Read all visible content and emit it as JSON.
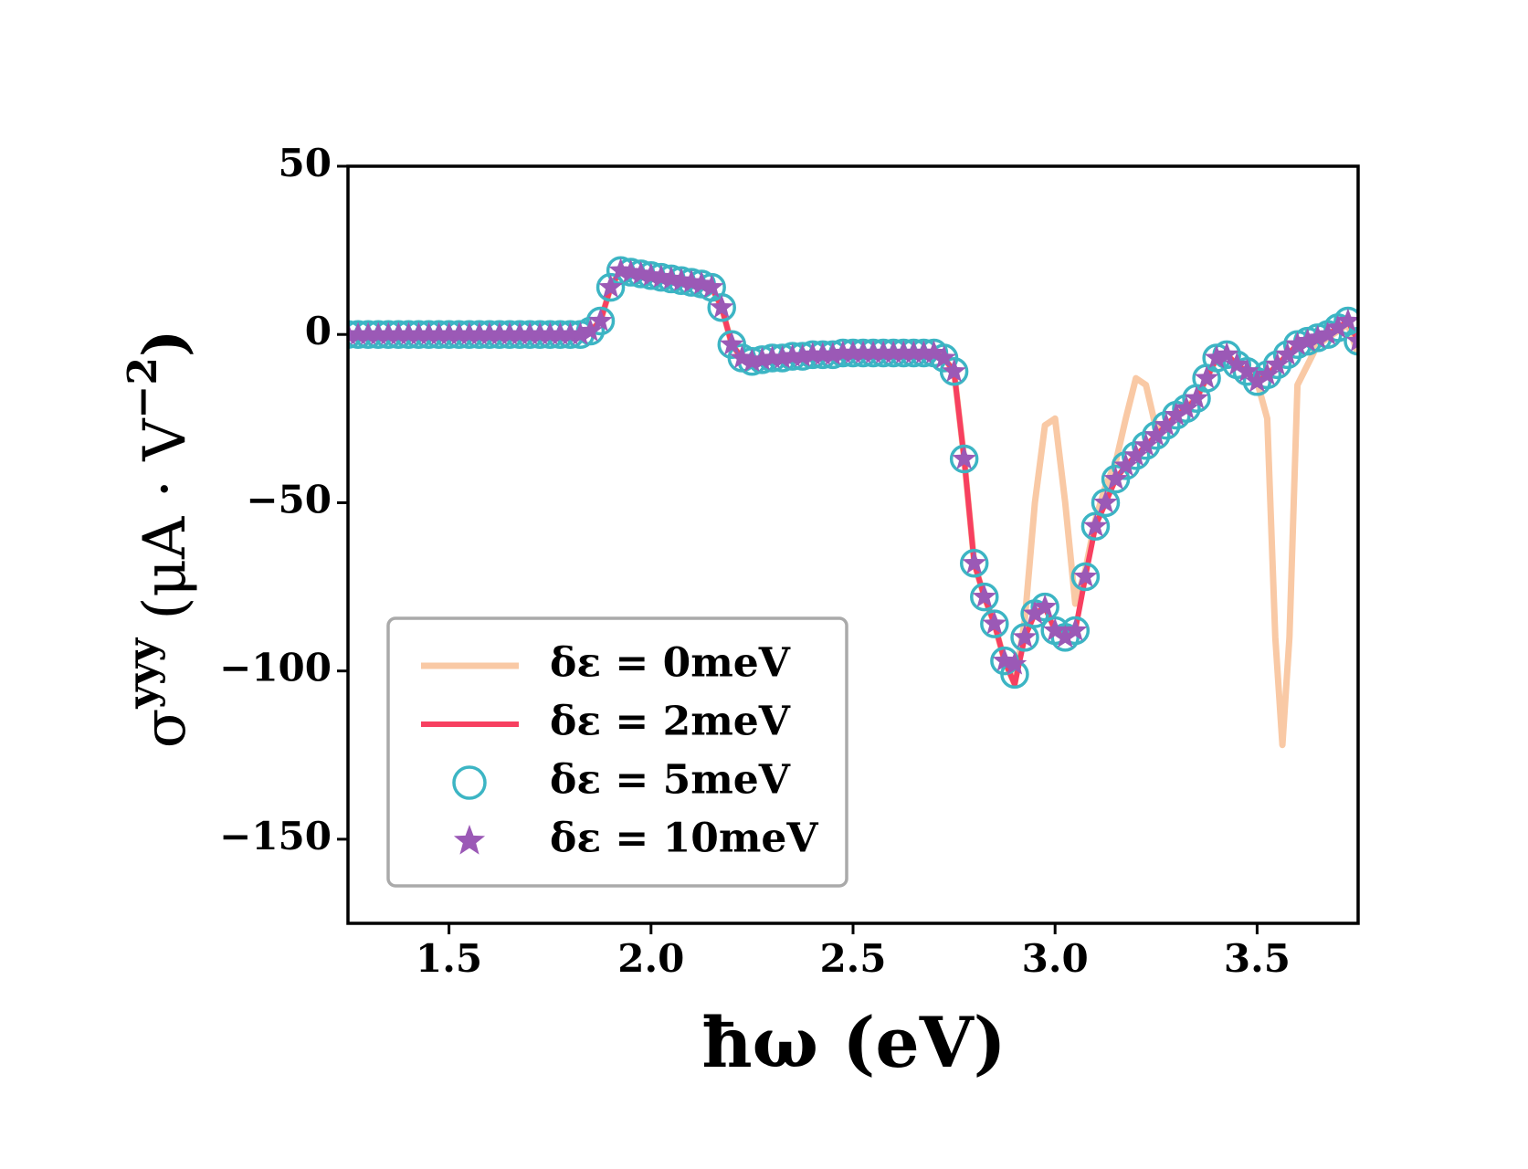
{
  "chart_data": {
    "type": "line",
    "xlabel": "ħω (eV)",
    "ylabel_parts": [
      "σ",
      "yyy",
      " (μA · V",
      "−2",
      ")"
    ],
    "xlim": [
      1.25,
      3.75
    ],
    "ylim": [
      -175,
      50
    ],
    "xticks": [
      1.5,
      {
        "value": 2,
        "label": "2.0"
      },
      2.5,
      {
        "value": 3,
        "label": "3.0"
      },
      3.5
    ],
    "yticks": [
      50,
      0,
      {
        "value": -50,
        "label": "−50"
      },
      {
        "value": -100,
        "label": "−100"
      },
      {
        "value": -150,
        "label": "−150"
      }
    ],
    "legend": "lower left",
    "x": [
      1.25,
      1.275,
      1.3,
      1.325,
      1.35,
      1.375,
      1.4,
      1.425,
      1.45,
      1.475,
      1.5,
      1.525,
      1.55,
      1.575,
      1.6,
      1.625,
      1.65,
      1.675,
      1.7,
      1.725,
      1.75,
      1.775,
      1.8,
      1.825,
      1.85,
      1.875,
      1.9,
      1.925,
      1.95,
      1.975,
      2.0,
      2.025,
      2.05,
      2.075,
      2.1,
      2.125,
      2.15,
      2.175,
      2.2,
      2.225,
      2.25,
      2.275,
      2.3,
      2.325,
      2.35,
      2.375,
      2.4,
      2.425,
      2.45,
      2.475,
      2.5,
      2.525,
      2.55,
      2.575,
      2.6,
      2.625,
      2.65,
      2.675,
      2.7,
      2.725,
      2.75,
      2.775,
      2.8,
      2.825,
      2.85,
      2.875,
      2.9,
      2.925,
      2.95,
      2.975,
      3.0,
      3.025,
      3.05,
      3.075,
      3.1,
      3.125,
      3.15,
      3.175,
      3.2,
      3.225,
      3.25,
      3.275,
      3.3,
      3.325,
      3.35,
      3.375,
      3.4,
      3.425,
      3.45,
      3.475,
      3.5,
      3.525,
      3.55,
      3.575,
      3.6,
      3.625,
      3.65,
      3.675,
      3.7,
      3.725,
      3.75
    ],
    "series": [
      {
        "name": "δε = 0meV",
        "color": "#f9c9a5",
        "style": "line",
        "x": [
          1.25,
          1.825,
          1.85,
          1.875,
          1.9,
          1.925,
          2.15,
          2.175,
          2.2,
          2.225,
          2.25,
          2.7,
          2.725,
          2.75,
          2.775,
          2.8,
          2.825,
          2.85,
          2.875,
          2.9,
          2.925,
          2.95,
          2.975,
          3.0,
          3.025,
          3.05,
          3.075,
          3.1,
          3.125,
          3.15,
          3.175,
          3.2,
          3.225,
          3.25,
          3.275,
          3.3,
          3.35,
          3.4,
          3.425,
          3.45,
          3.5,
          3.525,
          3.545,
          3.5625,
          3.58,
          3.6,
          3.65,
          3.7,
          3.725,
          3.75
        ],
        "values": [
          0,
          0,
          1,
          4,
          14,
          19,
          14,
          8,
          -3,
          -7,
          -8,
          -5.5,
          -7,
          -11,
          -37,
          -68,
          -78,
          -86,
          -97,
          -104,
          -85,
          -50,
          -27,
          -25,
          -50,
          -80,
          -70,
          -55,
          -45,
          -38,
          -25,
          -13,
          -15,
          -28,
          -28,
          -24,
          -19,
          -7,
          -6,
          -9,
          -14,
          -25,
          -90,
          -122,
          -90,
          -15,
          -3,
          1,
          3,
          -6
        ]
      },
      {
        "name": "δε = 2meV",
        "color": "#f74060",
        "style": "line",
        "values": [
          0,
          0,
          0,
          0,
          0,
          0,
          0,
          0,
          0,
          0,
          0,
          0,
          0,
          0,
          0,
          0,
          0,
          0,
          0,
          0,
          0,
          0,
          0,
          0,
          1,
          4,
          14,
          19,
          18.5,
          18,
          17.5,
          17,
          16.5,
          16,
          15.5,
          15,
          14,
          8,
          -3,
          -7,
          -8,
          -7.5,
          -7,
          -7,
          -6.5,
          -6.5,
          -6,
          -6,
          -6,
          -5.5,
          -5.5,
          -5.5,
          -5.5,
          -5.5,
          -5.5,
          -5.5,
          -5.5,
          -5.5,
          -5.5,
          -7,
          -11,
          -37,
          -68,
          -78,
          -86,
          -97,
          -104,
          -90,
          -83,
          -81,
          -88,
          -90,
          -88,
          -72,
          -57,
          -50,
          -43,
          -39,
          -36,
          -33,
          -30,
          -27,
          -24,
          -22,
          -19,
          -13,
          -7,
          -6,
          -9,
          -11,
          -14,
          -12,
          -9,
          -6,
          -3,
          -2,
          -1,
          0,
          2,
          4,
          -2
        ]
      },
      {
        "name": "δε = 5meV",
        "color": "#3cb5c4",
        "style": "circle",
        "values": [
          0,
          0,
          0,
          0,
          0,
          0,
          0,
          0,
          0,
          0,
          0,
          0,
          0,
          0,
          0,
          0,
          0,
          0,
          0,
          0,
          0,
          0,
          0,
          0,
          1,
          4,
          14,
          19,
          18.5,
          18,
          17.5,
          17,
          16.5,
          16,
          15.5,
          15,
          14,
          8,
          -3,
          -7,
          -8,
          -7.5,
          -7,
          -7,
          -6.5,
          -6.5,
          -6,
          -6,
          -6,
          -5.5,
          -5.5,
          -5.5,
          -5.5,
          -5.5,
          -5.5,
          -5.5,
          -5.5,
          -5.5,
          -5.5,
          -7,
          -11,
          -37,
          -68,
          -78,
          -86,
          -97,
          -101,
          -90,
          -83,
          -81,
          -88,
          -90,
          -88,
          -72,
          -57,
          -50,
          -43,
          -39,
          -36,
          -33,
          -30,
          -27,
          -24,
          -22,
          -19,
          -13,
          -7,
          -6,
          -9,
          -11,
          -14,
          -12,
          -9,
          -6,
          -3,
          -2,
          -1,
          0,
          2,
          4,
          -2
        ]
      },
      {
        "name": "δε = 10meV",
        "color": "#9b59b6",
        "style": "star",
        "values": [
          0,
          0,
          0,
          0,
          0,
          0,
          0,
          0,
          0,
          0,
          0,
          0,
          0,
          0,
          0,
          0,
          0,
          0,
          0,
          0,
          0,
          0,
          0,
          0,
          1,
          4,
          14,
          19,
          18.5,
          18,
          17.5,
          17,
          16.5,
          16,
          15.5,
          15,
          14,
          8,
          -3,
          -7,
          -8,
          -7.5,
          -7,
          -7,
          -6.5,
          -6.5,
          -6,
          -6,
          -6,
          -5.5,
          -5.5,
          -5.5,
          -5.5,
          -5.5,
          -5.5,
          -5.5,
          -5.5,
          -5.5,
          -5.5,
          -7,
          -11,
          -37,
          -68,
          -78,
          -86,
          -97,
          -98,
          -90,
          -83,
          -81,
          -88,
          -90,
          -88,
          -72,
          -57,
          -50,
          -43,
          -39,
          -36,
          -33,
          -30,
          -27,
          -24,
          -22,
          -19,
          -13,
          -7,
          -6,
          -9,
          -11,
          -14,
          -12,
          -9,
          -6,
          -3,
          -2,
          -1,
          0,
          2,
          4,
          -2
        ]
      }
    ]
  }
}
